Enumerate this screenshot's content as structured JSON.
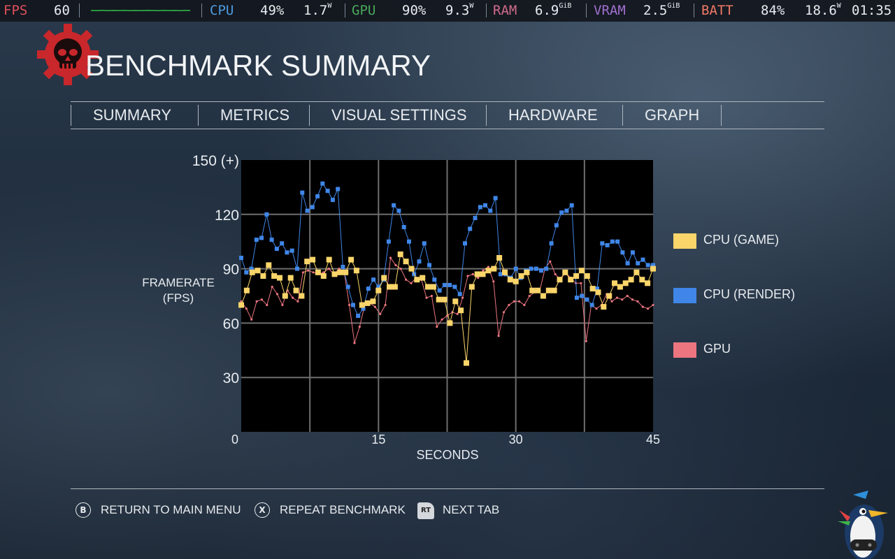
{
  "overlay": {
    "fps_label": "FPS",
    "fps_value": "60",
    "cpu_label": "CPU",
    "cpu_percent": "49%",
    "cpu_power": "1.7",
    "cpu_power_unit": "W",
    "gpu_label": "GPU",
    "gpu_percent": "90%",
    "gpu_power": "9.3",
    "gpu_power_unit": "W",
    "ram_label": "RAM",
    "ram_value": "6.9",
    "ram_unit": "GiB",
    "vram_label": "VRAM",
    "vram_value": "2.5",
    "vram_unit": "GiB",
    "batt_label": "BATT",
    "batt_percent": "84%",
    "batt_power": "18.6",
    "batt_power_unit": "W",
    "clock": "01:35",
    "colors": {
      "fps": "#e0505a",
      "cpu": "#4d9be0",
      "gpu": "#4aa85a",
      "ram": "#d06a8a",
      "vram": "#a070d0",
      "batt": "#f07a66",
      "graph": "#2fbf4a"
    }
  },
  "header": {
    "title": "BENCHMARK SUMMARY",
    "logo_icon": "cog-skull-icon"
  },
  "tabs": [
    {
      "label": "SUMMARY"
    },
    {
      "label": "METRICS"
    },
    {
      "label": "VISUAL SETTINGS"
    },
    {
      "label": "HARDWARE"
    },
    {
      "label": "GRAPH"
    }
  ],
  "chart_data": {
    "type": "line",
    "ylabel_line1": "FRAMERATE",
    "ylabel_line2": "(FPS)",
    "xlabel": "SECONDS",
    "xlim": [
      0,
      45
    ],
    "ylim": [
      0,
      150
    ],
    "x_ticks": [
      0,
      15,
      30,
      45
    ],
    "x_tick_labels": [
      "0",
      "15",
      "30",
      "45"
    ],
    "y_ticks": [
      30,
      60,
      90,
      120,
      150
    ],
    "y_tick_labels": [
      "30",
      "60",
      "90",
      "120",
      "150 (+)"
    ],
    "grid": true,
    "legend_position": "right",
    "series": [
      {
        "name": "CPU (GAME)",
        "color": "#fad56a",
        "marker": "square",
        "values": [
          70,
          78,
          88,
          89,
          86,
          92,
          86,
          85,
          75,
          85,
          78,
          75,
          94,
          95,
          88,
          86,
          95,
          87,
          88,
          88,
          95,
          89,
          70,
          71,
          72,
          78,
          85,
          80,
          80,
          98,
          94,
          90,
          84,
          85,
          80,
          80,
          73,
          73,
          60,
          72,
          67,
          38,
          80,
          87,
          87,
          89,
          90,
          96,
          88,
          84,
          83,
          86,
          88,
          78,
          78,
          75,
          78,
          78,
          84,
          88,
          84,
          86,
          89,
          86,
          79,
          77,
          69,
          75,
          82,
          80,
          82,
          84,
          88,
          84,
          82,
          90
        ]
      },
      {
        "name": "CPU (RENDER)",
        "color": "#3f86e8",
        "marker": "square",
        "values": [
          96,
          88,
          90,
          106,
          107,
          120,
          106,
          101,
          104,
          99,
          100,
          90,
          132,
          122,
          124,
          130,
          137,
          133,
          128,
          134,
          91,
          80,
          70,
          64,
          68,
          79,
          84,
          80,
          84,
          105,
          125,
          122,
          113,
          105,
          87,
          94,
          104,
          92,
          84,
          78,
          81,
          81,
          80,
          76,
          104,
          112,
          118,
          124,
          125,
          122,
          129,
          87,
          87,
          85,
          90,
          85,
          89,
          90,
          90,
          89,
          90,
          104,
          114,
          121,
          122,
          125,
          74,
          75,
          73,
          70,
          79,
          104,
          103,
          105,
          105,
          99,
          93,
          99,
          93,
          95,
          92,
          92
        ]
      },
      {
        "name": "GPU",
        "color": "#ec7580",
        "marker": "line",
        "values": [
          72,
          68,
          62,
          72,
          73,
          70,
          80,
          76,
          70,
          78,
          74,
          72,
          88,
          89,
          88,
          87,
          88,
          90,
          87,
          90,
          88,
          70,
          49,
          58,
          70,
          71,
          69,
          65,
          70,
          96,
          92,
          90,
          84,
          82,
          85,
          84,
          74,
          75,
          58,
          62,
          64,
          66,
          65,
          74,
          86,
          87,
          85,
          89,
          91,
          83,
          53,
          66,
          70,
          72,
          72,
          70,
          75,
          77,
          78,
          90,
          94,
          87,
          84,
          88,
          85,
          82,
          82,
          50,
          70,
          68,
          70,
          76,
          72,
          74,
          73,
          75,
          73,
          72,
          69,
          68,
          70
        ]
      }
    ]
  },
  "footer": {
    "actions": [
      {
        "glyph": "B",
        "label": "RETURN TO MAIN MENU"
      },
      {
        "glyph": "X",
        "label": "REPEAT BENCHMARK"
      },
      {
        "glyph": "RT",
        "label": "NEXT TAB"
      }
    ],
    "mascot_icon": "penguin-gamepad-icon"
  }
}
